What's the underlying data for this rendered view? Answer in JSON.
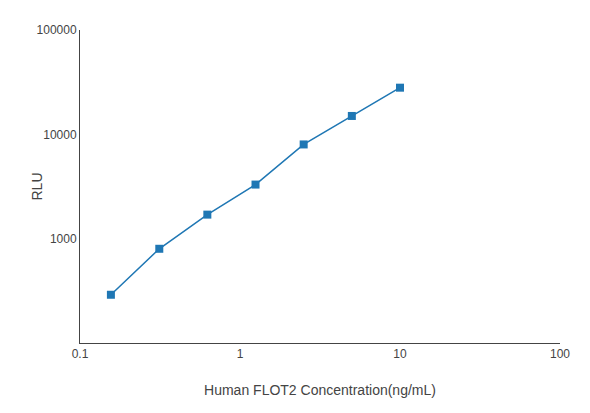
{
  "chart_data": {
    "type": "line",
    "x": [
      0.156,
      0.313,
      0.625,
      1.25,
      2.5,
      5.0,
      10.0
    ],
    "values": [
      290,
      800,
      1700,
      3300,
      8000,
      15000,
      28000
    ],
    "xlabel": "Human FLOT2 Concentration(ng/mL)",
    "ylabel": "RLU",
    "xlim": [
      0.1,
      100
    ],
    "ylim": [
      100,
      100000
    ],
    "xticks": [
      0.1,
      1,
      10,
      100
    ],
    "yticks": [
      1000,
      10000,
      100000
    ],
    "log": true,
    "grid": false,
    "marker": "square"
  }
}
